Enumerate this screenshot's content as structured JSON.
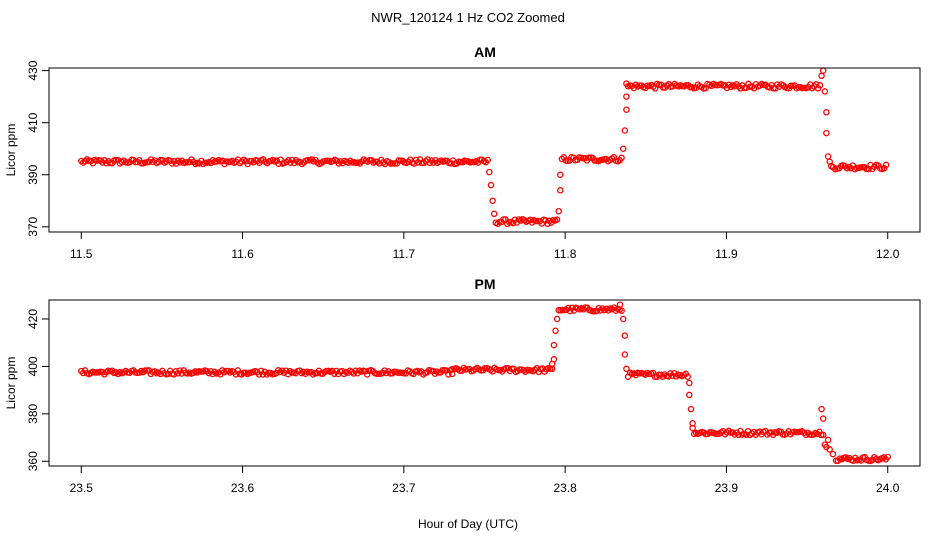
{
  "figure": {
    "title": "NWR_120124  1 Hz CO2 Zoomed",
    "xlabel": "Hour of Day (UTC)"
  },
  "chart_data": [
    {
      "type": "scatter",
      "title": "AM",
      "ylabel": "Licor ppm",
      "xlim": [
        11.48,
        12.02
      ],
      "ylim": [
        368,
        431
      ],
      "xticks": [
        "11.5",
        "11.6",
        "11.7",
        "11.8",
        "11.9",
        "12.0"
      ],
      "yticks": [
        "370",
        "390",
        "410",
        "430"
      ],
      "marker_color": "#ff0000",
      "segments": [
        {
          "x_start": 11.5,
          "x_end": 11.752,
          "y": 395
        },
        {
          "x_start": 11.757,
          "x_end": 11.795,
          "y": 372
        },
        {
          "x_start": 11.798,
          "x_end": 11.835,
          "y": 396
        },
        {
          "x_start": 11.839,
          "x_end": 11.958,
          "y": 424
        },
        {
          "x_start": 11.965,
          "x_end": 11.999,
          "y": 393
        }
      ],
      "transitions": [
        {
          "x": 11.753,
          "y": 391
        },
        {
          "x": 11.754,
          "y": 386
        },
        {
          "x": 11.755,
          "y": 380
        },
        {
          "x": 11.756,
          "y": 375
        },
        {
          "x": 11.796,
          "y": 376
        },
        {
          "x": 11.797,
          "y": 384
        },
        {
          "x": 11.797,
          "y": 390
        },
        {
          "x": 11.836,
          "y": 400
        },
        {
          "x": 11.837,
          "y": 407
        },
        {
          "x": 11.838,
          "y": 415
        },
        {
          "x": 11.838,
          "y": 420
        },
        {
          "x": 11.838,
          "y": 425
        },
        {
          "x": 11.959,
          "y": 428
        },
        {
          "x": 11.96,
          "y": 430
        },
        {
          "x": 11.961,
          "y": 422
        },
        {
          "x": 11.962,
          "y": 414
        },
        {
          "x": 11.962,
          "y": 406
        },
        {
          "x": 11.963,
          "y": 397
        },
        {
          "x": 11.964,
          "y": 395
        }
      ]
    },
    {
      "type": "scatter",
      "title": "PM",
      "ylabel": "Licor ppm",
      "xlim": [
        23.48,
        24.02
      ],
      "ylim": [
        358,
        428
      ],
      "xticks": [
        "23.5",
        "23.6",
        "23.7",
        "23.8",
        "23.9",
        "24.0"
      ],
      "yticks": [
        "360",
        "380",
        "400",
        "420"
      ],
      "marker_color": "#ff0000",
      "segments": [
        {
          "x_start": 23.5,
          "x_end": 23.73,
          "y": 397.5
        },
        {
          "x_start": 23.73,
          "x_end": 23.792,
          "y": 398.5
        },
        {
          "x_start": 23.796,
          "x_end": 23.835,
          "y": 424
        },
        {
          "x_start": 23.839,
          "x_end": 23.876,
          "y": 396.5
        },
        {
          "x_start": 23.88,
          "x_end": 23.96,
          "y": 372
        },
        {
          "x_start": 23.968,
          "x_end": 24.0,
          "y": 361
        }
      ],
      "transitions": [
        {
          "x": 23.792,
          "y": 401
        },
        {
          "x": 23.793,
          "y": 403
        },
        {
          "x": 23.793,
          "y": 409
        },
        {
          "x": 23.794,
          "y": 415
        },
        {
          "x": 23.795,
          "y": 420
        },
        {
          "x": 23.834,
          "y": 426
        },
        {
          "x": 23.836,
          "y": 420
        },
        {
          "x": 23.837,
          "y": 413
        },
        {
          "x": 23.837,
          "y": 405
        },
        {
          "x": 23.838,
          "y": 399
        },
        {
          "x": 23.877,
          "y": 393
        },
        {
          "x": 23.877,
          "y": 388
        },
        {
          "x": 23.878,
          "y": 382
        },
        {
          "x": 23.879,
          "y": 376
        },
        {
          "x": 23.879,
          "y": 374
        },
        {
          "x": 23.959,
          "y": 382
        },
        {
          "x": 23.96,
          "y": 378
        },
        {
          "x": 23.961,
          "y": 367
        },
        {
          "x": 23.962,
          "y": 366
        },
        {
          "x": 23.963,
          "y": 369
        },
        {
          "x": 23.964,
          "y": 365
        },
        {
          "x": 23.966,
          "y": 363
        }
      ]
    }
  ]
}
